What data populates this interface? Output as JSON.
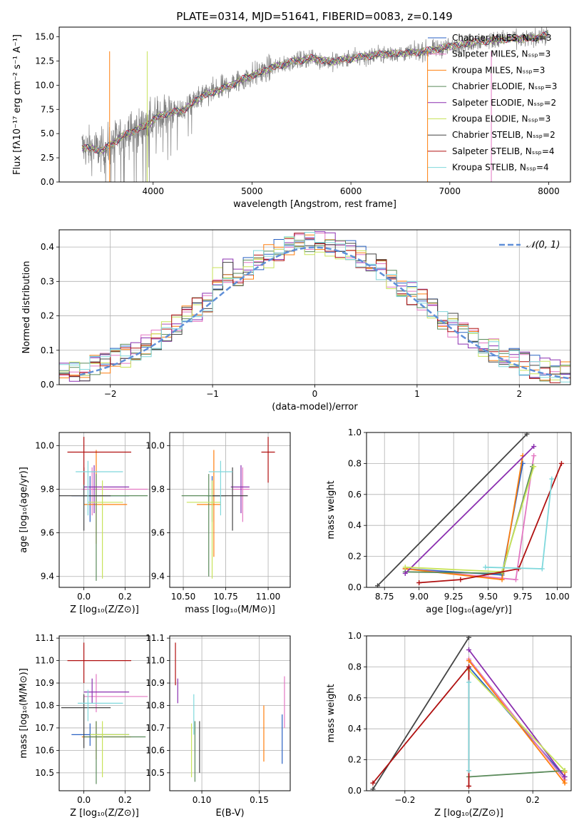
{
  "colors": {
    "gray": "#808080",
    "chabrier_miles": "#2a62c4",
    "salpeter_miles": "#e377c2",
    "kroupa_miles": "#ff7f0e",
    "chabrier_elodie": "#5a8a5a",
    "salpeter_elodie": "#8b2fb0",
    "kroupa_elodie": "#c8e35a",
    "chabrier_stelib": "#444444",
    "salpeter_stelib": "#b01010",
    "kroupa_stelib": "#7fd8dc",
    "normal_curve": "#5f8fd8",
    "grid": "#b0b0b0"
  },
  "chart_data": [
    {
      "id": "spectrum",
      "type": "line",
      "title": "PLATE=0314, MJD=51641, FIBERID=0083, z=0.149",
      "xlabel": "wavelength [Angstrom, rest frame]",
      "ylabel": "Flux [fλ10⁻¹⁷ erg cm⁻² s⁻¹ A⁻¹]",
      "xlim": [
        3050,
        8220
      ],
      "ylim": [
        0,
        16
      ],
      "xticks": [
        4000,
        5000,
        6000,
        7000,
        8000
      ],
      "yticks": [
        0.0,
        2.5,
        5.0,
        7.5,
        10.0,
        12.5,
        15.0
      ],
      "grid": false,
      "legend_position": "top-right",
      "legend": [
        {
          "label": "Chabrier MILES, Nₛₛₚ=3",
          "color": "#2a62c4"
        },
        {
          "label": "Salpeter MILES, Nₛₛₚ=3",
          "color": "#e377c2"
        },
        {
          "label": "Kroupa MILES, Nₛₛₚ=3",
          "color": "#ff7f0e"
        },
        {
          "label": "Chabrier ELODIE, Nₛₛₚ=3",
          "color": "#5a8a5a"
        },
        {
          "label": "Salpeter ELODIE, Nₛₛₚ=2",
          "color": "#8b2fb0"
        },
        {
          "label": "Kroupa ELODIE, Nₛₛₚ=3",
          "color": "#c8e35a"
        },
        {
          "label": "Chabrier STELIB, Nₛₛₚ=2",
          "color": "#444444"
        },
        {
          "label": "Salpeter STELIB, Nₛₛₚ=4",
          "color": "#b01010"
        },
        {
          "label": "Kroupa STELIB, Nₛₛₚ=4",
          "color": "#7fd8dc"
        }
      ],
      "continuum": [
        [
          3280,
          3.6
        ],
        [
          3400,
          3.4
        ],
        [
          3500,
          3.3
        ],
        [
          3700,
          4.8
        ],
        [
          3900,
          5.7
        ],
        [
          4100,
          7.0
        ],
        [
          4300,
          7.4
        ],
        [
          4500,
          8.9
        ],
        [
          4700,
          9.6
        ],
        [
          4900,
          10.6
        ],
        [
          5000,
          11.0
        ],
        [
          5200,
          11.8
        ],
        [
          5400,
          12.4
        ],
        [
          5600,
          12.8
        ],
        [
          5800,
          12.4
        ],
        [
          5900,
          12.6
        ],
        [
          6100,
          12.9
        ],
        [
          6300,
          13.2
        ],
        [
          6500,
          13.3
        ],
        [
          6600,
          13.3
        ],
        [
          6800,
          13.6
        ],
        [
          7000,
          14.0
        ],
        [
          7200,
          14.4
        ],
        [
          7400,
          14.6
        ],
        [
          7600,
          14.8
        ],
        [
          7800,
          14.8
        ],
        [
          8000,
          15.2
        ]
      ]
    },
    {
      "id": "residuals",
      "type": "histogram",
      "xlabel": "(data-model)/error",
      "ylabel": "Normed distribution",
      "xlim": [
        -2.5,
        2.5
      ],
      "ylim": [
        0,
        0.45
      ],
      "xticks": [
        -2,
        -1,
        0,
        1,
        2
      ],
      "yticks": [
        0.0,
        0.1,
        0.2,
        0.3,
        0.4
      ],
      "grid": true,
      "legend_position": "top-right",
      "normal_label": "𝒩(0, 1)",
      "bin_width": 0.1
    },
    {
      "id": "age_vs_Z",
      "type": "errorbar",
      "xlabel": "Z [log₁₀(Z/Z⊙)]",
      "ylabel": "age  [log₁₀(age/yr)]",
      "xlim": [
        -0.12,
        0.32
      ],
      "ylim": [
        9.35,
        10.06
      ],
      "xticks": [
        0.0,
        0.2
      ],
      "yticks": [
        9.4,
        9.6,
        9.8,
        10.0
      ],
      "grid": true,
      "points": [
        {
          "c": "chabrier_miles",
          "x": 0.03,
          "y": 9.77,
          "xe": [
            0.09,
            0.19
          ],
          "ye": [
            0.12,
            0.09
          ]
        },
        {
          "c": "salpeter_miles",
          "x": 0.04,
          "y": 9.8,
          "xe": [
            0.05,
            0.27
          ],
          "ye": [
            0.12,
            0.1
          ]
        },
        {
          "c": "kroupa_miles",
          "x": 0.06,
          "y": 9.73,
          "xe": [
            0.06,
            0.15
          ],
          "ye": [
            0.18,
            0.25
          ]
        },
        {
          "c": "chabrier_elodie",
          "x": 0.06,
          "y": 9.77,
          "xe": [
            0.07,
            0.25
          ],
          "ye": [
            0.39,
            0.1
          ]
        },
        {
          "c": "salpeter_elodie",
          "x": 0.05,
          "y": 9.81,
          "xe": [
            0.05,
            0.17
          ],
          "ye": [
            0.12,
            0.1
          ]
        },
        {
          "c": "kroupa_elodie",
          "x": 0.09,
          "y": 9.74,
          "xe": [
            0.07,
            0.1
          ],
          "ye": [
            0.35,
            0.1
          ]
        },
        {
          "c": "chabrier_stelib",
          "x": 0.0,
          "y": 9.77,
          "xe": [
            0.12,
            0.13
          ],
          "ye": [
            0.16,
            0.13
          ]
        },
        {
          "c": "salpeter_stelib",
          "x": 0.0,
          "y": 9.97,
          "xe": [
            0.08,
            0.23
          ],
          "ye": [
            0.15,
            0.07
          ]
        },
        {
          "c": "kroupa_stelib",
          "x": 0.02,
          "y": 9.88,
          "xe": [
            0.06,
            0.17
          ],
          "ye": [
            0.2,
            0.05
          ]
        }
      ]
    },
    {
      "id": "age_vs_mass",
      "type": "errorbar",
      "xlabel": "mass [log₁₀(M/M⊙)]",
      "ylabel": "",
      "xlim": [
        10.42,
        11.13
      ],
      "ylim": [
        9.35,
        10.06
      ],
      "xticks": [
        10.5,
        10.75,
        11.0
      ],
      "yticks": [
        9.4,
        9.6,
        9.8,
        10.0
      ],
      "grid": true,
      "points": [
        {
          "c": "chabrier_miles",
          "x": 10.67,
          "y": 9.77,
          "xe": [
            0.03,
            0.05
          ],
          "ye": [
            0.12,
            0.09
          ]
        },
        {
          "c": "salpeter_miles",
          "x": 10.85,
          "y": 9.8,
          "xe": [
            0.06,
            0.04
          ],
          "ye": [
            0.15,
            0.1
          ]
        },
        {
          "c": "kroupa_miles",
          "x": 10.68,
          "y": 9.73,
          "xe": [
            0.1,
            0.04
          ],
          "ye": [
            0.24,
            0.25
          ]
        },
        {
          "c": "chabrier_elodie",
          "x": 10.65,
          "y": 9.77,
          "xe": [
            0.16,
            0.1
          ],
          "ye": [
            0.37,
            0.1
          ]
        },
        {
          "c": "salpeter_elodie",
          "x": 10.84,
          "y": 9.81,
          "xe": [
            0.06,
            0.05
          ],
          "ye": [
            0.12,
            0.1
          ]
        },
        {
          "c": "kroupa_elodie",
          "x": 10.67,
          "y": 9.74,
          "xe": [
            0.15,
            0.05
          ],
          "ye": [
            0.35,
            0.1
          ]
        },
        {
          "c": "chabrier_stelib",
          "x": 10.79,
          "y": 9.77,
          "xe": [
            0.12,
            0.09
          ],
          "ye": [
            0.16,
            0.13
          ]
        },
        {
          "c": "salpeter_stelib",
          "x": 11.0,
          "y": 9.97,
          "xe": [
            0.04,
            0.04
          ],
          "ye": [
            0.14,
            0.07
          ]
        },
        {
          "c": "kroupa_stelib",
          "x": 10.72,
          "y": 9.88,
          "xe": [
            0.07,
            0.07
          ],
          "ye": [
            0.2,
            0.05
          ]
        }
      ]
    },
    {
      "id": "weight_vs_age",
      "type": "line",
      "xlabel": "age  [log₁₀(age/yr)]",
      "ylabel": "mass weight",
      "xlim": [
        8.62,
        10.1
      ],
      "ylim": [
        0,
        1
      ],
      "xticks": [
        8.75,
        9.0,
        9.25,
        9.5,
        9.75,
        10.0
      ],
      "yticks": [
        0.0,
        0.2,
        0.4,
        0.6,
        0.8,
        1.0
      ],
      "grid": true,
      "series": [
        {
          "c": "chabrier_miles",
          "pts": [
            [
              8.9,
              0.12
            ],
            [
              9.6,
              0.08
            ],
            [
              9.75,
              0.8
            ]
          ]
        },
        {
          "c": "salpeter_miles",
          "pts": [
            [
              8.9,
              0.12
            ],
            [
              9.7,
              0.05
            ],
            [
              9.83,
              0.85
            ]
          ]
        },
        {
          "c": "kroupa_miles",
          "pts": [
            [
              8.9,
              0.12
            ],
            [
              9.6,
              0.05
            ],
            [
              9.75,
              0.85
            ]
          ]
        },
        {
          "c": "chabrier_elodie",
          "pts": [
            [
              8.9,
              0.1
            ],
            [
              9.6,
              0.09
            ],
            [
              9.82,
              0.78
            ]
          ]
        },
        {
          "c": "salpeter_elodie",
          "pts": [
            [
              8.9,
              0.09
            ],
            [
              9.83,
              0.91
            ]
          ]
        },
        {
          "c": "kroupa_elodie",
          "pts": [
            [
              8.9,
              0.13
            ],
            [
              9.6,
              0.1
            ],
            [
              9.83,
              0.78
            ]
          ]
        },
        {
          "c": "chabrier_stelib",
          "pts": [
            [
              8.7,
              0.01
            ],
            [
              9.78,
              0.99
            ]
          ]
        },
        {
          "c": "salpeter_stelib",
          "pts": [
            [
              9.0,
              0.03
            ],
            [
              9.3,
              0.05
            ],
            [
              9.72,
              0.12
            ],
            [
              10.03,
              0.8
            ]
          ]
        },
        {
          "c": "kroupa_stelib",
          "pts": [
            [
              9.48,
              0.13
            ],
            [
              9.89,
              0.12
            ],
            [
              9.96,
              0.7
            ]
          ]
        }
      ]
    },
    {
      "id": "mass_vs_Z",
      "type": "errorbar",
      "xlabel": "Z [log₁₀(Z/Z⊙)]",
      "ylabel": "mass [log₁₀(M/M⊙)]",
      "xlim": [
        -0.12,
        0.32
      ],
      "ylim": [
        10.42,
        11.11
      ],
      "xticks": [
        0.0,
        0.2
      ],
      "yticks": [
        10.5,
        10.6,
        10.7,
        10.8,
        10.9,
        11.0,
        11.1
      ],
      "grid": true,
      "points": [
        {
          "c": "chabrier_miles",
          "x": 0.03,
          "y": 10.67,
          "xe": [
            0.09,
            0.19
          ],
          "ye": [
            0.05,
            0.05
          ]
        },
        {
          "c": "salpeter_miles",
          "x": 0.06,
          "y": 10.84,
          "xe": [
            0.06,
            0.25
          ],
          "ye": [
            0.07,
            0.1
          ]
        },
        {
          "c": "kroupa_miles",
          "x": 0.06,
          "y": 10.66,
          "xe": [
            0.07,
            0.17
          ],
          "ye": [
            0.1,
            0.07
          ]
        },
        {
          "c": "chabrier_elodie",
          "x": 0.06,
          "y": 10.66,
          "xe": [
            0.06,
            0.24
          ],
          "ye": [
            0.21,
            0.07
          ]
        },
        {
          "c": "salpeter_elodie",
          "x": 0.04,
          "y": 10.86,
          "xe": [
            0.04,
            0.18
          ],
          "ye": [
            0.05,
            0.06
          ]
        },
        {
          "c": "kroupa_elodie",
          "x": 0.09,
          "y": 10.67,
          "xe": [
            0.06,
            0.13
          ],
          "ye": [
            0.19,
            0.06
          ]
        },
        {
          "c": "chabrier_stelib",
          "x": 0.0,
          "y": 10.79,
          "xe": [
            0.11,
            0.13
          ],
          "ye": [
            0.18,
            0.06
          ]
        },
        {
          "c": "salpeter_stelib",
          "x": 0.0,
          "y": 11.0,
          "xe": [
            0.08,
            0.23
          ],
          "ye": [
            0.1,
            0.08
          ]
        },
        {
          "c": "kroupa_stelib",
          "x": 0.02,
          "y": 10.81,
          "xe": [
            0.05,
            0.17
          ],
          "ye": [
            0.08,
            0.06
          ]
        }
      ]
    },
    {
      "id": "mass_vs_ebv",
      "type": "errorbar",
      "xlabel": "E(B-V)",
      "ylabel": "",
      "xlim": [
        0.072,
        0.177
      ],
      "ylim": [
        10.42,
        11.11
      ],
      "xticks": [
        0.1,
        0.15
      ],
      "yticks": [
        10.5,
        10.6,
        10.7,
        10.8,
        10.9,
        11.0,
        11.1
      ],
      "grid": true,
      "points": [
        {
          "c": "chabrier_miles",
          "x": 0.17,
          "y": 10.65,
          "xe": [
            0,
            0
          ],
          "ye": [
            0.11,
            0.11
          ]
        },
        {
          "c": "salpeter_miles",
          "x": 0.172,
          "y": 10.81,
          "xe": [
            0,
            0
          ],
          "ye": [
            0.11,
            0.12
          ]
        },
        {
          "c": "kroupa_miles",
          "x": 0.154,
          "y": 10.67,
          "xe": [
            0,
            0
          ],
          "ye": [
            0.12,
            0.13
          ]
        },
        {
          "c": "chabrier_elodie",
          "x": 0.094,
          "y": 10.6,
          "xe": [
            0,
            0
          ],
          "ye": [
            0.14,
            0.13
          ]
        },
        {
          "c": "salpeter_elodie",
          "x": 0.079,
          "y": 10.86,
          "xe": [
            0,
            0
          ],
          "ye": [
            0.05,
            0.06
          ]
        },
        {
          "c": "kroupa_elodie",
          "x": 0.091,
          "y": 10.6,
          "xe": [
            0,
            0
          ],
          "ye": [
            0.12,
            0.12
          ]
        },
        {
          "c": "chabrier_stelib",
          "x": 0.098,
          "y": 10.61,
          "xe": [
            0,
            0
          ],
          "ye": [
            0.11,
            0.12
          ]
        },
        {
          "c": "salpeter_stelib",
          "x": 0.077,
          "y": 10.99,
          "xe": [
            0,
            0
          ],
          "ye": [
            0.1,
            0.09
          ]
        },
        {
          "c": "kroupa_stelib",
          "x": 0.093,
          "y": 10.75,
          "xe": [
            0,
            0
          ],
          "ye": [
            0.08,
            0.1
          ]
        }
      ]
    },
    {
      "id": "weight_vs_Z",
      "type": "line",
      "xlabel": "Z [log₁₀(Z/Z⊙)]",
      "ylabel": "mass weight",
      "xlim": [
        -0.32,
        0.32
      ],
      "ylim": [
        0,
        1
      ],
      "xticks": [
        -0.2,
        0.0,
        0.2
      ],
      "yticks": [
        0.0,
        0.2,
        0.4,
        0.6,
        0.8,
        1.0
      ],
      "grid": true,
      "series": [
        {
          "c": "chabrier_miles",
          "pts": [
            [
              0.0,
              0.8
            ],
            [
              0.3,
              0.09
            ]
          ]
        },
        {
          "c": "salpeter_miles",
          "pts": [
            [
              0.0,
              0.85
            ],
            [
              0.3,
              0.07
            ]
          ]
        },
        {
          "c": "kroupa_miles",
          "pts": [
            [
              0.0,
              0.84
            ],
            [
              0.3,
              0.05
            ],
            [
              0.3,
              0.12
            ]
          ]
        },
        {
          "c": "chabrier_elodie",
          "pts": [
            [
              0.0,
              0.09
            ],
            [
              0.3,
              0.13
            ]
          ]
        },
        {
          "c": "salpeter_elodie",
          "pts": [
            [
              0.0,
              0.91
            ],
            [
              0.3,
              0.09
            ]
          ]
        },
        {
          "c": "kroupa_elodie",
          "pts": [
            [
              0.0,
              0.78
            ],
            [
              0.3,
              0.13
            ]
          ]
        },
        {
          "c": "chabrier_stelib",
          "pts": [
            [
              -0.3,
              0.01
            ],
            [
              0.0,
              0.99
            ]
          ]
        },
        {
          "c": "salpeter_stelib",
          "pts": [
            [
              -0.3,
              0.05
            ],
            [
              0.0,
              0.8
            ],
            [
              0.0,
              0.03
            ]
          ]
        },
        {
          "c": "kroupa_stelib",
          "pts": [
            [
              0.0,
              0.7
            ],
            [
              0.0,
              0.13
            ]
          ]
        }
      ]
    }
  ]
}
